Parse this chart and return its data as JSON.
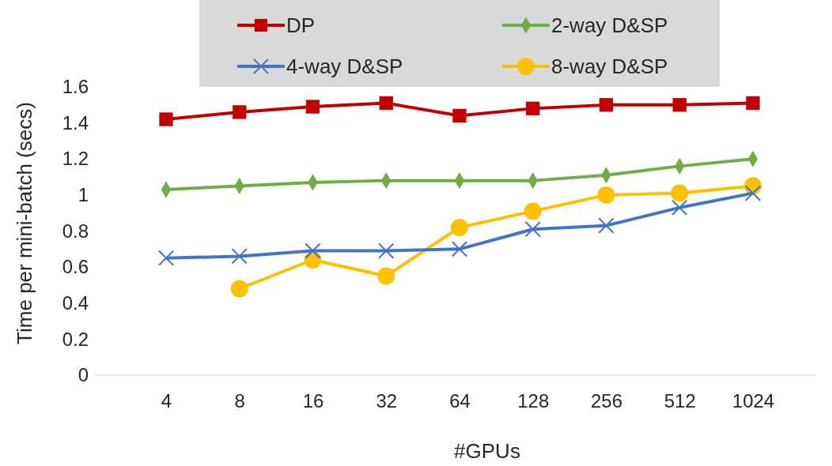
{
  "chart_data": {
    "type": "line",
    "xlabel": "#GPUs",
    "ylabel": "Time per mini-batch (secs)",
    "categories": [
      "4",
      "8",
      "16",
      "32",
      "64",
      "128",
      "256",
      "512",
      "1024"
    ],
    "ylim": [
      0,
      1.6
    ],
    "yticks": [
      0,
      0.2,
      0.4,
      0.6,
      0.8,
      {
        "value": 1,
        "label": "1"
      },
      1.2,
      1.4,
      1.6
    ],
    "grid": false,
    "legend": "top",
    "series": [
      {
        "name": "DP",
        "color": "#c00000",
        "marker": "square",
        "values": [
          1.42,
          1.46,
          1.49,
          1.51,
          1.44,
          1.48,
          1.5,
          1.5,
          1.51
        ]
      },
      {
        "name": "2-way D&SP",
        "color": "#70ad47",
        "marker": "diamond",
        "values": [
          1.03,
          1.05,
          1.07,
          1.08,
          1.08,
          1.08,
          1.11,
          1.16,
          1.2
        ]
      },
      {
        "name": "4-way D&SP",
        "color": "#4472c4",
        "marker": "cross",
        "values": [
          0.65,
          0.66,
          0.69,
          0.69,
          0.7,
          0.81,
          0.83,
          0.93,
          1.01
        ]
      },
      {
        "name": "8-way D&SP",
        "color": "#ffc000",
        "marker": "circle",
        "values": [
          null,
          0.48,
          0.64,
          0.55,
          0.82,
          0.91,
          1.0,
          1.01,
          1.05
        ]
      }
    ]
  }
}
